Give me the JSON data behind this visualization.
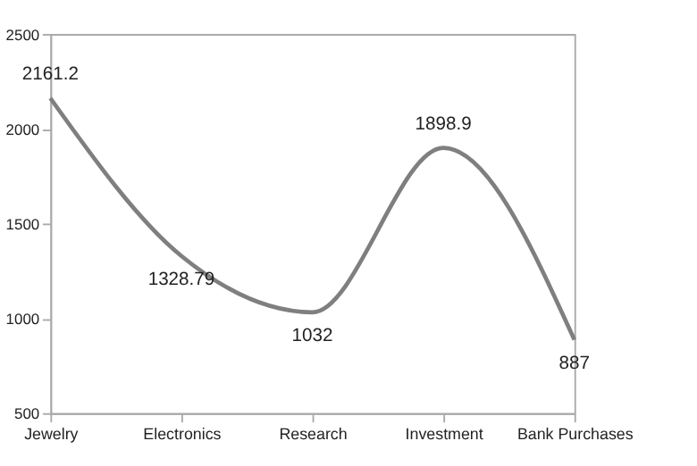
{
  "chart_data": {
    "type": "line",
    "categories": [
      "Jewelry",
      "Electronics",
      "Research",
      "Investment",
      "Bank Purchases"
    ],
    "series": [
      {
        "color": "#7f7f7f",
        "values": [
          2161.2,
          1328.79,
          1032,
          1898.9,
          887
        ]
      }
    ],
    "ylim": [
      500,
      2500
    ],
    "yticks": [
      500,
      1000,
      1500,
      2000,
      2500
    ],
    "data_labels": true,
    "grid": false,
    "legend": false,
    "marker": "none",
    "line_style": "solid"
  }
}
